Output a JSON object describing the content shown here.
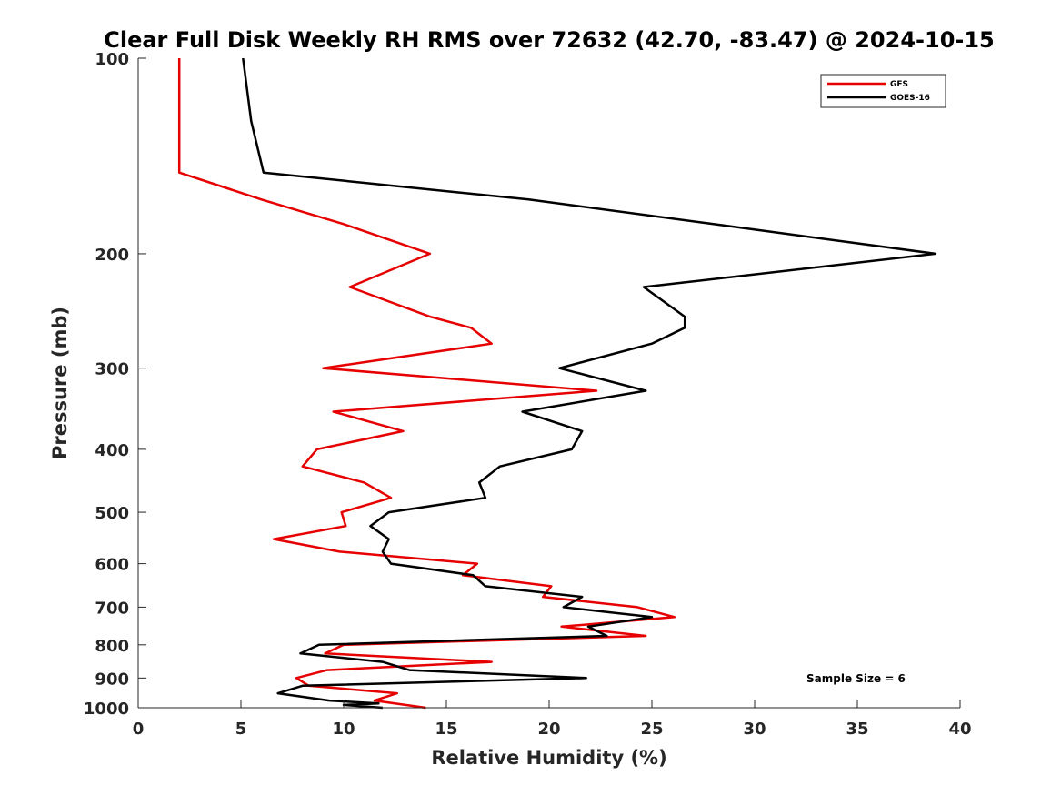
{
  "chart_data": {
    "type": "line",
    "title": "Clear Full Disk Weekly RH RMS over 72632 (42.70, -83.47) @ 2024-10-15",
    "xlabel": "Relative Humidity (%)",
    "ylabel": "Pressure (mb)",
    "xlim": [
      0,
      40
    ],
    "ylim": [
      100,
      1000
    ],
    "y_scale": "log",
    "y_reversed": true,
    "x_ticks": [
      0,
      5,
      10,
      15,
      20,
      25,
      30,
      35,
      40
    ],
    "y_ticks": [
      100,
      200,
      300,
      400,
      500,
      600,
      700,
      800,
      900,
      1000
    ],
    "grid": false,
    "legend_position": "top-right",
    "annotation": "Sample Size = 6",
    "series": [
      {
        "name": "GFS",
        "color": "#e60000",
        "points": [
          {
            "x": 2.0,
            "p": 100
          },
          {
            "x": 2.0,
            "p": 125
          },
          {
            "x": 2.0,
            "p": 150
          },
          {
            "x": 6.0,
            "p": 165
          },
          {
            "x": 10.0,
            "p": 180
          },
          {
            "x": 14.2,
            "p": 200
          },
          {
            "x": 10.3,
            "p": 225
          },
          {
            "x": 14.2,
            "p": 250
          },
          {
            "x": 16.2,
            "p": 260
          },
          {
            "x": 17.2,
            "p": 275
          },
          {
            "x": 9.0,
            "p": 300
          },
          {
            "x": 22.3,
            "p": 325
          },
          {
            "x": 9.5,
            "p": 350
          },
          {
            "x": 12.9,
            "p": 375
          },
          {
            "x": 8.7,
            "p": 400
          },
          {
            "x": 8.0,
            "p": 425
          },
          {
            "x": 11.0,
            "p": 450
          },
          {
            "x": 12.3,
            "p": 475
          },
          {
            "x": 9.9,
            "p": 500
          },
          {
            "x": 10.1,
            "p": 525
          },
          {
            "x": 6.6,
            "p": 550
          },
          {
            "x": 9.8,
            "p": 575
          },
          {
            "x": 16.5,
            "p": 600
          },
          {
            "x": 15.8,
            "p": 625
          },
          {
            "x": 20.1,
            "p": 650
          },
          {
            "x": 19.7,
            "p": 675
          },
          {
            "x": 24.3,
            "p": 700
          },
          {
            "x": 26.1,
            "p": 725
          },
          {
            "x": 20.6,
            "p": 750
          },
          {
            "x": 24.7,
            "p": 775
          },
          {
            "x": 10.0,
            "p": 800
          },
          {
            "x": 9.1,
            "p": 825
          },
          {
            "x": 17.2,
            "p": 850
          },
          {
            "x": 9.2,
            "p": 875
          },
          {
            "x": 7.7,
            "p": 900
          },
          {
            "x": 8.3,
            "p": 925
          },
          {
            "x": 12.6,
            "p": 950
          },
          {
            "x": 11.5,
            "p": 975
          },
          {
            "x": 14.0,
            "p": 1000
          }
        ]
      },
      {
        "name": "GOES-16",
        "color": "#000000",
        "points": [
          {
            "x": 5.1,
            "p": 100
          },
          {
            "x": 5.5,
            "p": 125
          },
          {
            "x": 6.1,
            "p": 150
          },
          {
            "x": 19.0,
            "p": 165
          },
          {
            "x": 28.0,
            "p": 180
          },
          {
            "x": 38.8,
            "p": 200
          },
          {
            "x": 24.6,
            "p": 225
          },
          {
            "x": 26.6,
            "p": 250
          },
          {
            "x": 26.6,
            "p": 260
          },
          {
            "x": 25.0,
            "p": 275
          },
          {
            "x": 20.5,
            "p": 300
          },
          {
            "x": 24.7,
            "p": 325
          },
          {
            "x": 18.7,
            "p": 350
          },
          {
            "x": 21.6,
            "p": 375
          },
          {
            "x": 21.1,
            "p": 400
          },
          {
            "x": 17.6,
            "p": 425
          },
          {
            "x": 16.6,
            "p": 450
          },
          {
            "x": 16.9,
            "p": 475
          },
          {
            "x": 12.2,
            "p": 500
          },
          {
            "x": 11.3,
            "p": 525
          },
          {
            "x": 12.2,
            "p": 550
          },
          {
            "x": 11.9,
            "p": 575
          },
          {
            "x": 12.3,
            "p": 600
          },
          {
            "x": 16.3,
            "p": 625
          },
          {
            "x": 16.9,
            "p": 650
          },
          {
            "x": 21.6,
            "p": 675
          },
          {
            "x": 20.7,
            "p": 700
          },
          {
            "x": 25.0,
            "p": 725
          },
          {
            "x": 21.9,
            "p": 750
          },
          {
            "x": 22.8,
            "p": 775
          },
          {
            "x": 8.8,
            "p": 800
          },
          {
            "x": 7.9,
            "p": 825
          },
          {
            "x": 11.9,
            "p": 850
          },
          {
            "x": 13.2,
            "p": 875
          },
          {
            "x": 21.8,
            "p": 900
          },
          {
            "x": 8.0,
            "p": 925
          },
          {
            "x": 6.8,
            "p": 950
          },
          {
            "x": 9.3,
            "p": 975
          },
          {
            "x": 11.7,
            "p": 985
          },
          {
            "x": 10.0,
            "p": 990
          },
          {
            "x": 11.9,
            "p": 1000
          }
        ]
      }
    ]
  }
}
